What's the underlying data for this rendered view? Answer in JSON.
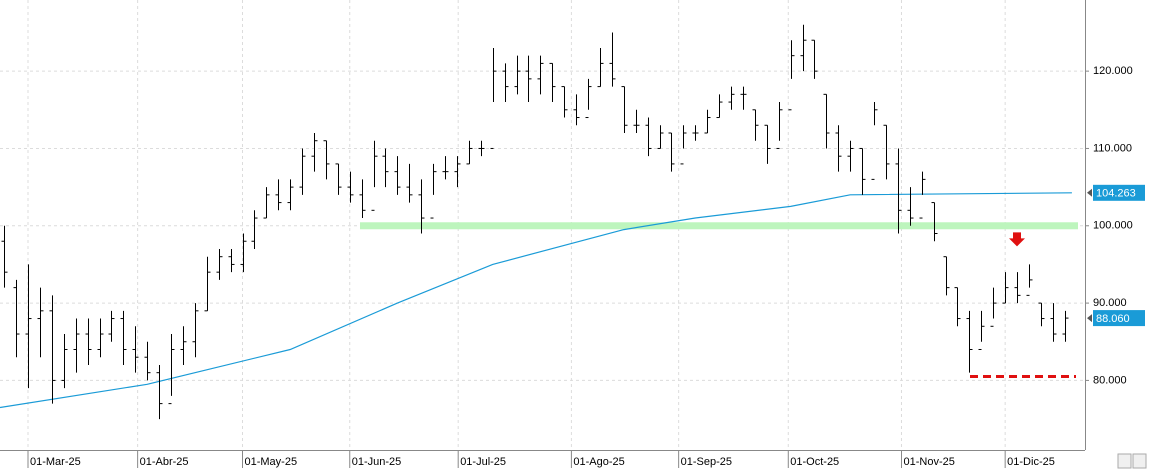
{
  "chart_data": {
    "type": "ohlc",
    "ylim": [
      71,
      129.2
    ],
    "yticks": [
      {
        "value": 80,
        "label": "80.000"
      },
      {
        "value": 90,
        "label": "90.000"
      },
      {
        "value": 100,
        "label": "100.000"
      },
      {
        "value": 110,
        "label": "110.000"
      },
      {
        "value": 120,
        "label": "120.000"
      }
    ],
    "xlim": [
      -0.35,
      90.7
    ],
    "xticks": [
      {
        "value": 2,
        "label": "01-Mar-25"
      },
      {
        "value": 11.2,
        "label": "01-Abr-25"
      },
      {
        "value": 20,
        "label": "01-May-25"
      },
      {
        "value": 29,
        "label": "01-Jun-25"
      },
      {
        "value": 38.1,
        "label": "01-Jul-25"
      },
      {
        "value": 47.6,
        "label": "01-Ago-25"
      },
      {
        "value": 56.6,
        "label": "01-Sep-25"
      },
      {
        "value": 65.8,
        "label": "01-Oct-25"
      },
      {
        "value": 75.3,
        "label": "01-Nov-25"
      },
      {
        "value": 84,
        "label": "01-Dic-25"
      }
    ],
    "grid": true,
    "bar_color": "#000000",
    "bars": [
      [
        98,
        100,
        92,
        94
      ],
      [
        92,
        93,
        83,
        86
      ],
      [
        86,
        95,
        79,
        88
      ],
      [
        88,
        92,
        83,
        89
      ],
      [
        89,
        91,
        77,
        80
      ],
      [
        80,
        86,
        79,
        84
      ],
      [
        84,
        88,
        81,
        86
      ],
      [
        86,
        88,
        82,
        84
      ],
      [
        84,
        88,
        83,
        86
      ],
      [
        86,
        89,
        85,
        88
      ],
      [
        88,
        89,
        82,
        84
      ],
      [
        84,
        87,
        81,
        83
      ],
      [
        83,
        85,
        80,
        81
      ],
      [
        81,
        82,
        75,
        77
      ],
      [
        77,
        86,
        78,
        84
      ],
      [
        84,
        87,
        82,
        85
      ],
      [
        85,
        90,
        83,
        89
      ],
      [
        89,
        96,
        89,
        94
      ],
      [
        94,
        97,
        93,
        96
      ],
      [
        96,
        97,
        94,
        95
      ],
      [
        95,
        99,
        94,
        98
      ],
      [
        98,
        102,
        97,
        101
      ],
      [
        101,
        105,
        101,
        104
      ],
      [
        104,
        106,
        102,
        103
      ],
      [
        103,
        106,
        102,
        105
      ],
      [
        105,
        110,
        104,
        109
      ],
      [
        109,
        112,
        107,
        111
      ],
      [
        111,
        111,
        106,
        108
      ],
      [
        108,
        108,
        104,
        105
      ],
      [
        105,
        107,
        103,
        104
      ],
      [
        104,
        106,
        101,
        102
      ],
      [
        102,
        111,
        105,
        109
      ],
      [
        109,
        110,
        105,
        107
      ],
      [
        107,
        109,
        104,
        105
      ],
      [
        105,
        108,
        103,
        104
      ],
      [
        104,
        106,
        99,
        101
      ],
      [
        101,
        108,
        104,
        107
      ],
      [
        107,
        109,
        106,
        107
      ],
      [
        107,
        109,
        105,
        108
      ],
      [
        108,
        111,
        108,
        110
      ],
      [
        110,
        111,
        109,
        110
      ],
      [
        110,
        123,
        116,
        120
      ],
      [
        120,
        121,
        116,
        118
      ],
      [
        118,
        122,
        117,
        120
      ],
      [
        120,
        122,
        116,
        119
      ],
      [
        119,
        122,
        117,
        121
      ],
      [
        121,
        121,
        116,
        118
      ],
      [
        118,
        118,
        114,
        115
      ],
      [
        115,
        117,
        113,
        114
      ],
      [
        114,
        119,
        115,
        118
      ],
      [
        118,
        123,
        118,
        121
      ],
      [
        121,
        125,
        118,
        119
      ],
      [
        118,
        118,
        112,
        113
      ],
      [
        113,
        115,
        112,
        113
      ],
      [
        113,
        114,
        109,
        110
      ],
      [
        110,
        113,
        110,
        112
      ],
      [
        112,
        112,
        107,
        108
      ],
      [
        108,
        113,
        110,
        112
      ],
      [
        112,
        113,
        111,
        112
      ],
      [
        112,
        115,
        112,
        114
      ],
      [
        114,
        117,
        114,
        116
      ],
      [
        116,
        118,
        115,
        117
      ],
      [
        117,
        118,
        115,
        117
      ],
      [
        115,
        115,
        111,
        113
      ],
      [
        113,
        113,
        108,
        110
      ],
      [
        110,
        116,
        111,
        115
      ],
      [
        115,
        124,
        119,
        122
      ],
      [
        122,
        126,
        120,
        124
      ],
      [
        124,
        124,
        119,
        120
      ],
      [
        117,
        117,
        110,
        112
      ],
      [
        112,
        113,
        107,
        109
      ],
      [
        109,
        111,
        107,
        110
      ],
      [
        110,
        110,
        104,
        106
      ],
      [
        106,
        116,
        113,
        115
      ],
      [
        113,
        113,
        106,
        108
      ],
      [
        108,
        110,
        99,
        102
      ],
      [
        102,
        105,
        100,
        101
      ],
      [
        101,
        107,
        104,
        106
      ],
      [
        103,
        103,
        98,
        99
      ],
      [
        96,
        96,
        91,
        92
      ],
      [
        92,
        92,
        87,
        88
      ],
      [
        88,
        89,
        81,
        84
      ],
      [
        84,
        89,
        85,
        87
      ],
      [
        87,
        92,
        88,
        90
      ],
      [
        90,
        94,
        90,
        92
      ],
      [
        92,
        94,
        90,
        91
      ],
      [
        91,
        95,
        92,
        93
      ],
      [
        90,
        90,
        87,
        88
      ],
      [
        88,
        90,
        85,
        86
      ],
      [
        86,
        89,
        85,
        88.06
      ]
    ],
    "ma": {
      "color": "#1a9bd7",
      "x": [
        -0.35,
        12,
        24,
        33,
        41,
        52,
        58,
        66,
        71,
        89.6
      ],
      "values": [
        76.5,
        79.5,
        84,
        90,
        95,
        99.5,
        101,
        102.5,
        104,
        104.263
      ]
    },
    "ma_tag": {
      "value": 104.263,
      "label": "104.263"
    },
    "price_tag": {
      "value": 88.06,
      "label": "88.060"
    },
    "support": {
      "value": 100,
      "color": "#bdf5bd"
    },
    "low_line": {
      "value": 80.5,
      "color": "#e01010"
    },
    "arrow": {
      "value": 97.6,
      "color": "#e01010"
    }
  }
}
